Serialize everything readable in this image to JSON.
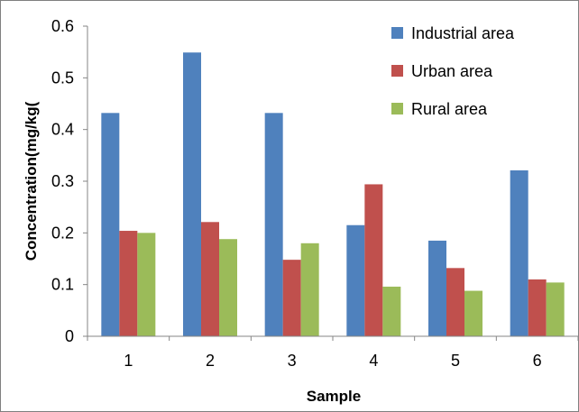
{
  "chart_data": {
    "type": "bar",
    "title": "",
    "xlabel": "Sample",
    "ylabel": "Concentration(mg/kg(",
    "categories": [
      "1",
      "2",
      "3",
      "4",
      "5",
      "6"
    ],
    "ylim": [
      0,
      0.6
    ],
    "yticks": [
      "0",
      "0.1",
      "0.2",
      "0.3",
      "0.4",
      "0.5",
      "0.6"
    ],
    "grid": false,
    "legend_position": "top-right",
    "series": [
      {
        "name": "Industrial area",
        "color": "#4f81bd",
        "values": [
          0.432,
          0.549,
          0.432,
          0.215,
          0.185,
          0.321
        ]
      },
      {
        "name": "Urban area",
        "color": "#c0504d",
        "values": [
          0.204,
          0.221,
          0.148,
          0.294,
          0.132,
          0.11
        ]
      },
      {
        "name": "Rural area",
        "color": "#9bbb59",
        "values": [
          0.2,
          0.188,
          0.18,
          0.096,
          0.088,
          0.104
        ]
      }
    ]
  }
}
